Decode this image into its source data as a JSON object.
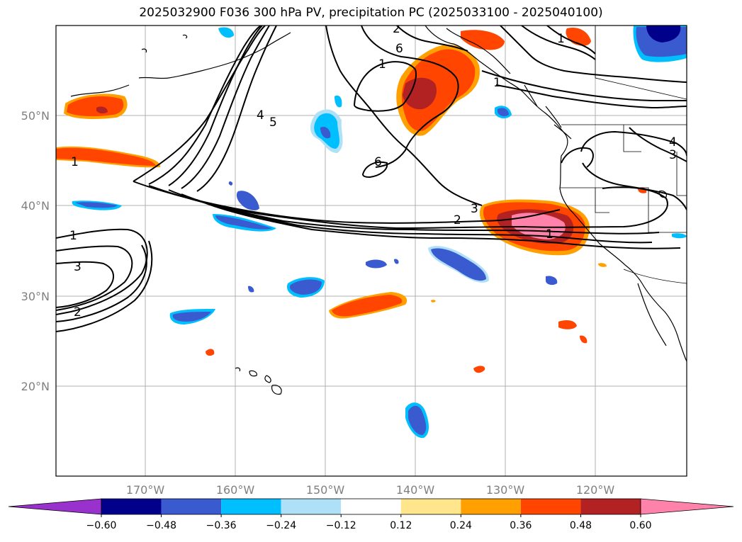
{
  "title": "2025032900 F036 300 hPa PV, precipitation PC (2025033100 - 2025040100)",
  "lon_labels": [
    "170°W",
    "160°W",
    "150°W",
    "140°W",
    "130°W",
    "120°W"
  ],
  "lat_labels": [
    "50°N",
    "40°N",
    "30°N",
    "20°N"
  ],
  "colorbar": {
    "ticks": [
      "−0.60",
      "−0.48",
      "−0.36",
      "−0.24",
      "−0.12",
      "0.12",
      "0.24",
      "0.36",
      "0.48",
      "0.60"
    ],
    "colors": [
      "#9932cc",
      "#00008b",
      "#3a5bd0",
      "#00bfff",
      "#aee0f8",
      "#ffffff",
      "#ffe68c",
      "#ffa000",
      "#ff4500",
      "#b22222",
      "#ff82ab"
    ]
  },
  "contour_labels": [
    "1",
    "2",
    "3",
    "4",
    "5",
    "6",
    "6",
    "1",
    "1",
    "2",
    "3",
    "1",
    "3",
    "4",
    "2",
    "1",
    "1"
  ],
  "shading_colors": {
    "neg_low": "#aee0f8",
    "neg_mid": "#00bfff",
    "neg_high": "#3a5bd0",
    "neg_max": "#00008b",
    "pos_low": "#ffe68c",
    "pos_mid": "#ffa000",
    "pos_high": "#ff4500",
    "pos_higher": "#b22222",
    "pos_max": "#ff82ab"
  }
}
